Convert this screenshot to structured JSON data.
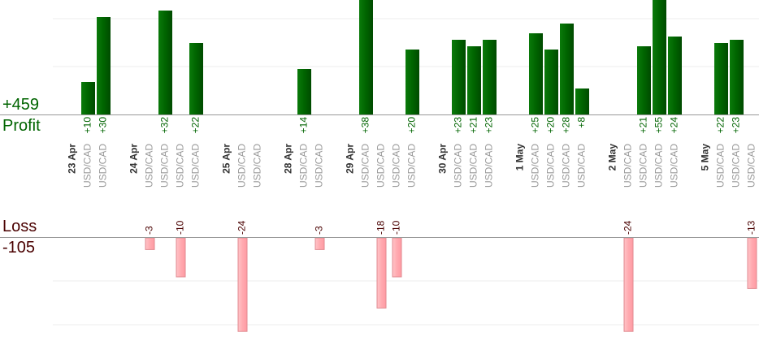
{
  "summary": {
    "profit_total": "+459",
    "profit_label": "Profit",
    "loss_label": "Loss",
    "loss_total": "-105"
  },
  "colors": {
    "profit_bar": "#006400",
    "loss_bar": "#ffb3b8",
    "loss_bar_stroke": "#e08a90",
    "profit_text": "#006400",
    "loss_text": "#4a0000",
    "date_text": "#333333",
    "symbol_text": "#999999",
    "axis": "#999999",
    "grid": "#eeeeee"
  },
  "chart_data": {
    "type": "bar",
    "profit_ylim": [
      0,
      30
    ],
    "loss_ylim": [
      0,
      24
    ],
    "columns": [
      {
        "kind": "date",
        "label": "23 Apr"
      },
      {
        "kind": "trade",
        "label": "USD/CAD",
        "value": 10,
        "text": "+10"
      },
      {
        "kind": "trade",
        "label": "USD/CAD",
        "value": 30,
        "text": "+30"
      },
      {
        "kind": "spacer"
      },
      {
        "kind": "date",
        "label": "24 Apr"
      },
      {
        "kind": "trade",
        "label": "USD/CAD",
        "value": -3,
        "text": "-3"
      },
      {
        "kind": "trade",
        "label": "USD/CAD",
        "value": 32,
        "text": "+32"
      },
      {
        "kind": "trade",
        "label": "USD/CAD",
        "value": -10,
        "text": "-10"
      },
      {
        "kind": "trade",
        "label": "USD/CAD",
        "value": 22,
        "text": "+22"
      },
      {
        "kind": "spacer"
      },
      {
        "kind": "date",
        "label": "25 Apr"
      },
      {
        "kind": "trade",
        "label": "USD/CAD",
        "value": -24,
        "text": "-24"
      },
      {
        "kind": "trade",
        "label": "USD/CAD"
      },
      {
        "kind": "spacer"
      },
      {
        "kind": "date",
        "label": "28 Apr"
      },
      {
        "kind": "trade",
        "label": "USD/CAD",
        "value": 14,
        "text": "+14"
      },
      {
        "kind": "trade",
        "label": "USD/CAD",
        "value": -3,
        "text": "-3"
      },
      {
        "kind": "spacer"
      },
      {
        "kind": "date",
        "label": "29 Apr"
      },
      {
        "kind": "trade",
        "label": "USD/CAD",
        "value": 38,
        "text": "+38"
      },
      {
        "kind": "trade",
        "label": "USD/CAD",
        "value": -18,
        "text": "-18"
      },
      {
        "kind": "trade",
        "label": "USD/CAD",
        "value": -10,
        "text": "-10"
      },
      {
        "kind": "trade",
        "label": "USD/CAD",
        "value": 20,
        "text": "+20"
      },
      {
        "kind": "spacer"
      },
      {
        "kind": "date",
        "label": "30 Apr"
      },
      {
        "kind": "trade",
        "label": "USD/CAD",
        "value": 23,
        "text": "+23"
      },
      {
        "kind": "trade",
        "label": "USD/CAD",
        "value": 21,
        "text": "+21"
      },
      {
        "kind": "trade",
        "label": "USD/CAD",
        "value": 23,
        "text": "+23"
      },
      {
        "kind": "spacer"
      },
      {
        "kind": "date",
        "label": "1 May"
      },
      {
        "kind": "trade",
        "label": "USD/CAD",
        "value": 25,
        "text": "+25"
      },
      {
        "kind": "trade",
        "label": "USD/CAD",
        "value": 20,
        "text": "+20"
      },
      {
        "kind": "trade",
        "label": "USD/CAD",
        "value": 28,
        "text": "+28"
      },
      {
        "kind": "trade",
        "label": "USD/CAD",
        "value": 8,
        "text": "+8"
      },
      {
        "kind": "spacer"
      },
      {
        "kind": "date",
        "label": "2 May"
      },
      {
        "kind": "trade",
        "label": "USD/CAD",
        "value": -24,
        "text": "-24"
      },
      {
        "kind": "trade",
        "label": "USD/CAD",
        "value": 21,
        "text": "+21"
      },
      {
        "kind": "trade",
        "label": "USD/CAD",
        "value": 55,
        "text": "+55"
      },
      {
        "kind": "trade",
        "label": "USD/CAD",
        "value": 24,
        "text": "+24"
      },
      {
        "kind": "spacer"
      },
      {
        "kind": "date",
        "label": "5 May"
      },
      {
        "kind": "trade",
        "label": "USD/CAD",
        "value": 22,
        "text": "+22"
      },
      {
        "kind": "trade",
        "label": "USD/CAD",
        "value": 23,
        "text": "+23"
      },
      {
        "kind": "trade",
        "label": "USD/CAD",
        "value": -13,
        "text": "-13"
      }
    ]
  }
}
